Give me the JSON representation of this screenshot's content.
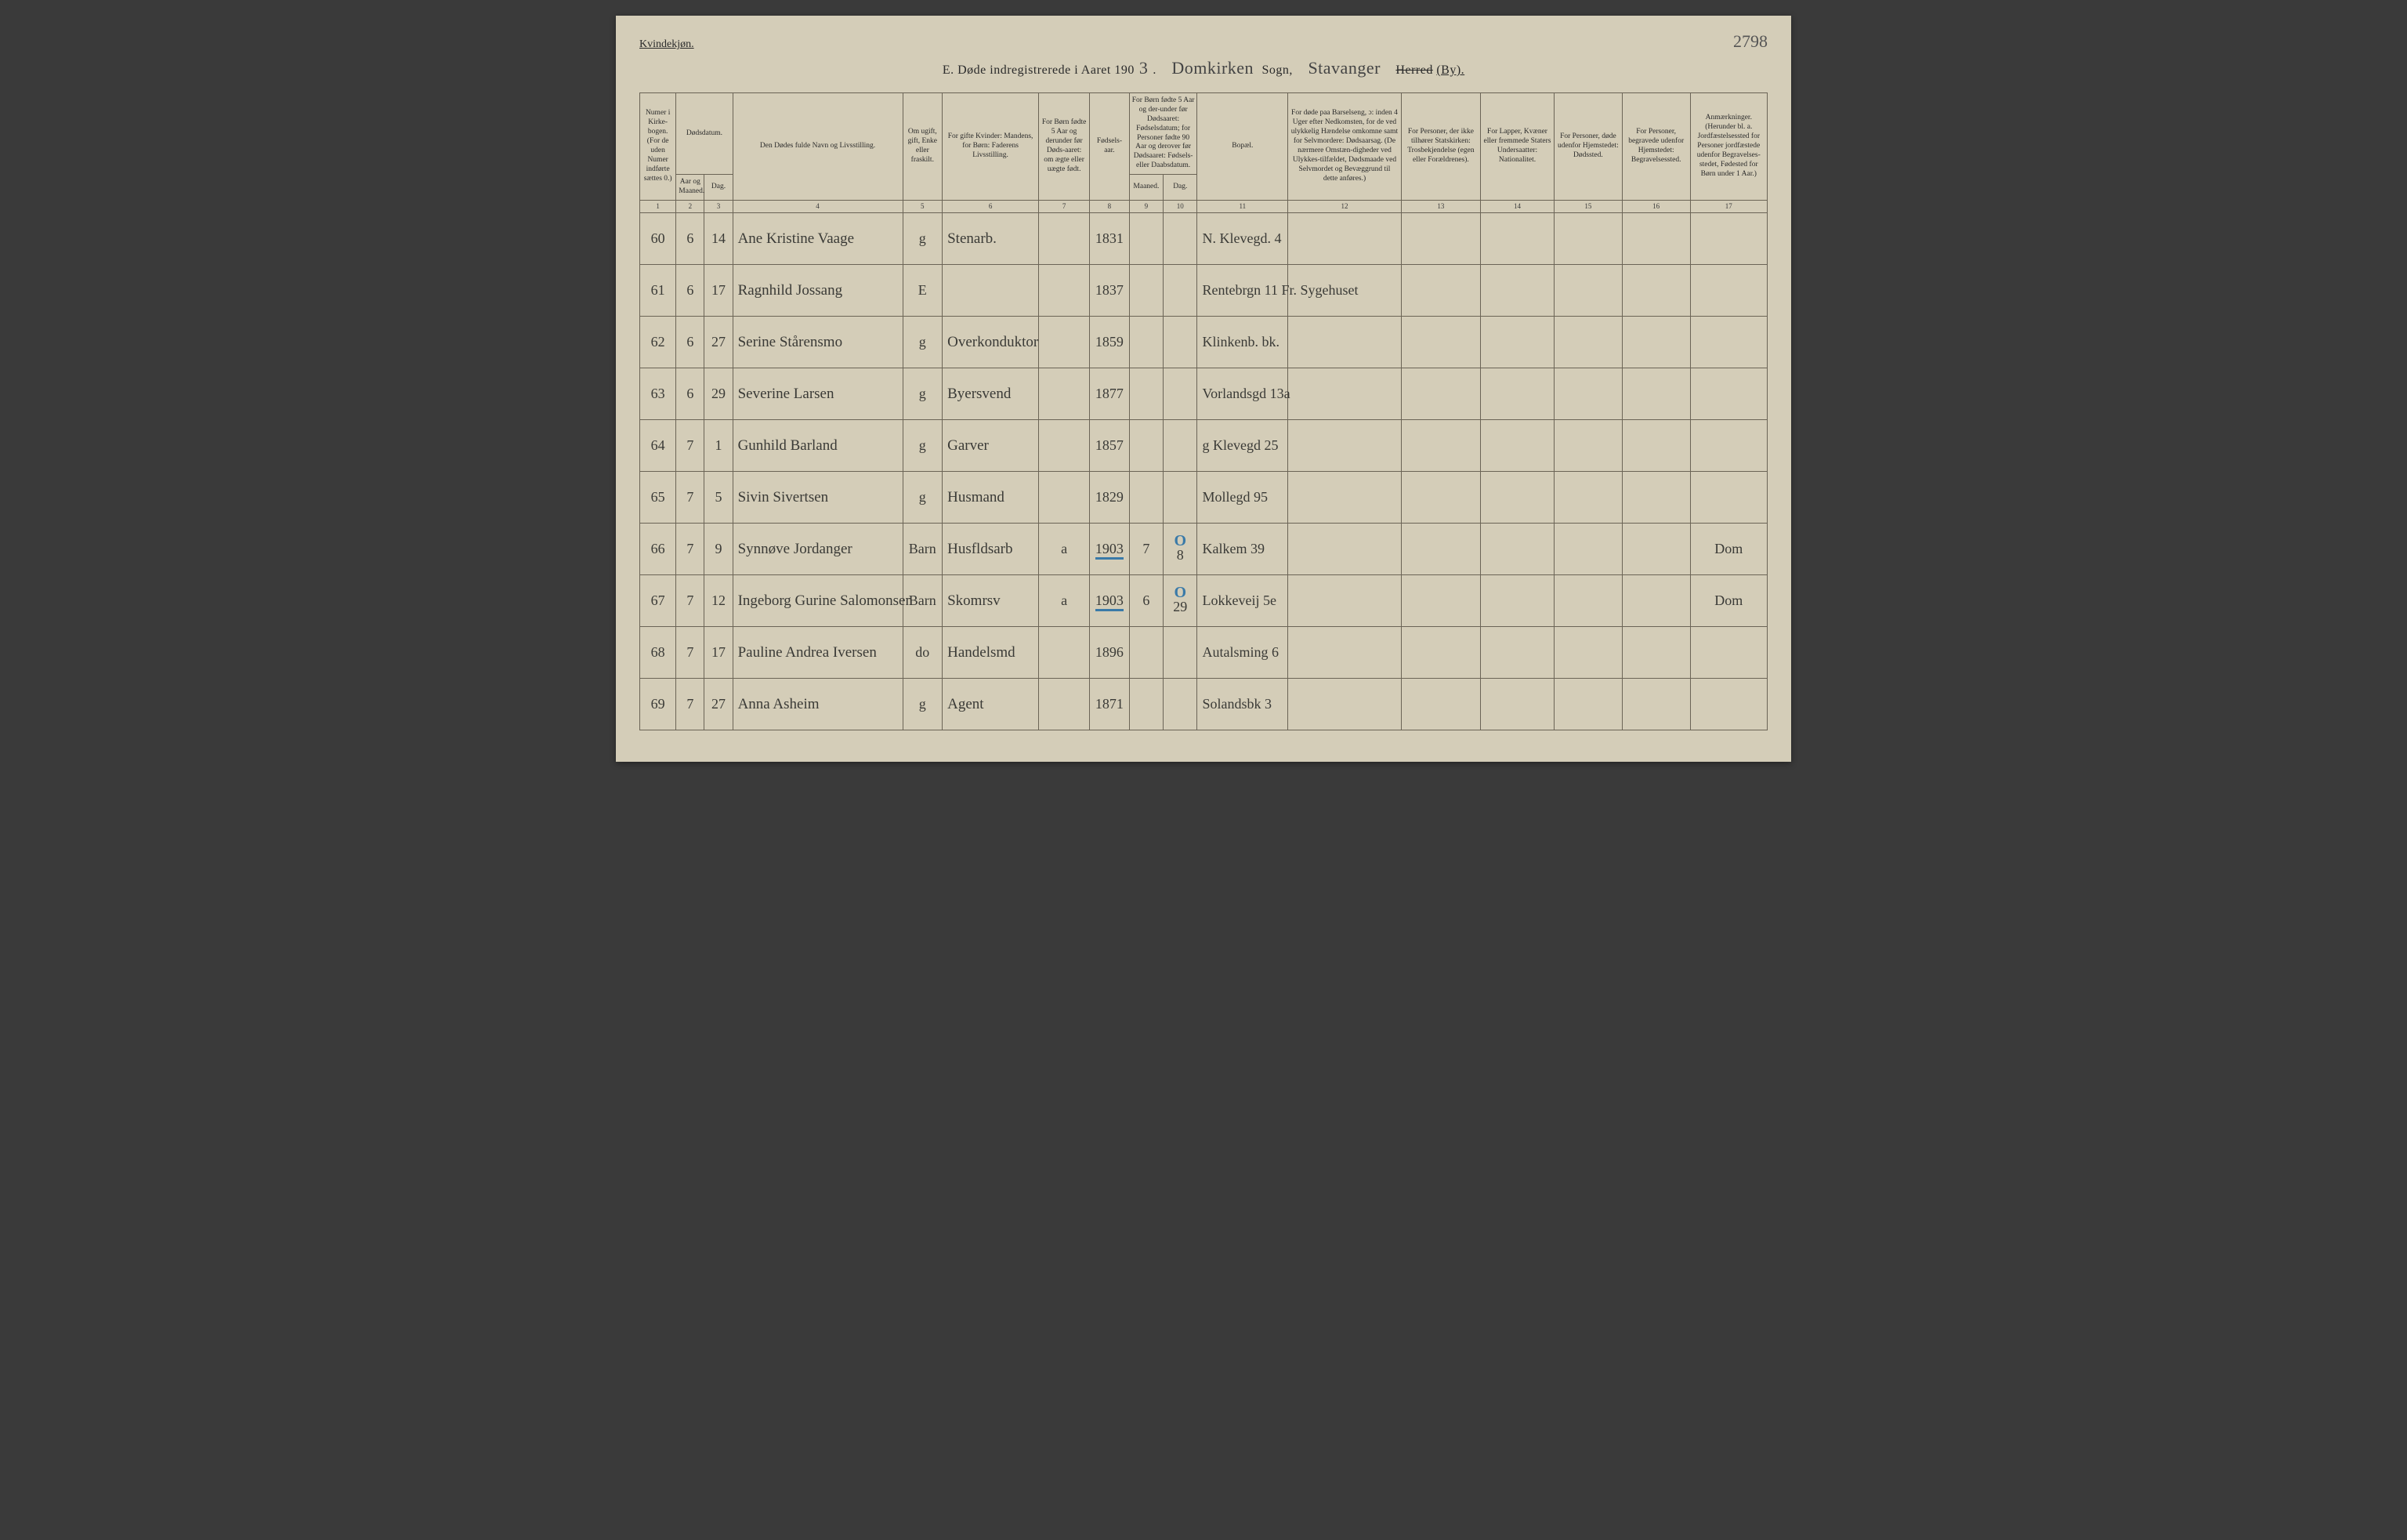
{
  "header": {
    "gender_label": "Kvindekjøn.",
    "page_number": "2798",
    "title_prefix": "E.  Døde indregistrerede i Aaret 190",
    "year_digit": "3",
    "sogn_handwritten": "Domkirken",
    "sogn_label": "Sogn,",
    "herred_handwritten": "Stavanger",
    "herred_strike": "Herred",
    "by_label": "(By)."
  },
  "columns": {
    "c1": "Numer i Kirke-bogen. (For de uden Numer indførte sættes 0.)",
    "c2a": "Dødsdatum.",
    "c2": "Aar og Maaned.",
    "c3": "Dag.",
    "c4": "Den Dødes fulde Navn og Livsstilling.",
    "c5": "Om ugift, gift, Enke eller fraskilt.",
    "c6": "For gifte Kvinder: Mandens, for Børn: Faderens Livsstilling.",
    "c7": "For Børn fødte 5 Aar og derunder før Døds-aaret: om ægte eller uægte født.",
    "c8": "Fødsels-aar.",
    "c9_10a": "For Børn fødte 5 Aar og der-under før Dødsaaret: Fødselsdatum; for Personer fødte 90 Aar og derover før Dødsaaret: Fødsels- eller Daabsdatum.",
    "c9": "Maaned.",
    "c10": "Dag.",
    "c11": "Bopæl.",
    "c12": "For døde paa Barselseng, ɔ: inden 4 Uger efter Nedkomsten, for de ved ulykkelig Hændelse omkomne samt for Selvmordere: Dødsaarsag. (De nærmere Omstæn-digheder ved Ulykkes-tilfældet, Dødsmaade ved Selvmordet og Bevæggrund til dette anføres.)",
    "c13": "For Personer, der ikke tilhører Statskirken: Trosbekjendelse (egen eller Forældrenes).",
    "c14": "For Lapper, Kvæner eller fremmede Staters Undersaatter: Nationalitet.",
    "c15": "For Personer, døde udenfor Hjemstedet: Dødssted.",
    "c16": "For Personer, begravede udenfor Hjemstedet: Begravelsessted.",
    "c17": "Anmærkninger. (Herunder bl. a. Jordfæstelsessted for Personer jordfæstede udenfor Begravelses-stedet, Fødested for Børn under 1 Aar.)"
  },
  "colnums": [
    "1",
    "2",
    "3",
    "4",
    "5",
    "6",
    "7",
    "8",
    "9",
    "10",
    "11",
    "12",
    "13",
    "14",
    "15",
    "16",
    "17"
  ],
  "rows": [
    {
      "num": "60",
      "mnd": "6",
      "dag": "14",
      "navn": "Ane Kristine Vaage",
      "stand": "g",
      "fader": "Stenarb.",
      "egte": "",
      "faar": "1831",
      "fmnd": "",
      "fdag": "",
      "bopael": "N. Klevegd. 4",
      "c12": "",
      "c13": "",
      "c14": "",
      "c15": "",
      "c16": "",
      "c17": ""
    },
    {
      "num": "61",
      "mnd": "6",
      "dag": "17",
      "navn": "Ragnhild Jossang",
      "stand": "E",
      "fader": "",
      "egte": "",
      "faar": "1837",
      "fmnd": "",
      "fdag": "",
      "bopael": "Rentebrgn 11   Fr. Sygehuset",
      "c12": "",
      "c13": "",
      "c14": "",
      "c15": "",
      "c16": "",
      "c17": ""
    },
    {
      "num": "62",
      "mnd": "6",
      "dag": "27",
      "navn": "Serine Stårensmo",
      "stand": "g",
      "fader": "Overkonduktor",
      "egte": "",
      "faar": "1859",
      "fmnd": "",
      "fdag": "",
      "bopael": "Klinkenb. bk.",
      "c12": "",
      "c13": "",
      "c14": "",
      "c15": "",
      "c16": "",
      "c17": ""
    },
    {
      "num": "63",
      "mnd": "6",
      "dag": "29",
      "navn": "Severine Larsen",
      "stand": "g",
      "fader": "Byersvend",
      "egte": "",
      "faar": "1877",
      "fmnd": "",
      "fdag": "",
      "bopael": "Vorlandsgd 13a",
      "c12": "",
      "c13": "",
      "c14": "",
      "c15": "",
      "c16": "",
      "c17": ""
    },
    {
      "num": "64",
      "mnd": "7",
      "dag": "1",
      "navn": "Gunhild Barland",
      "stand": "g",
      "fader": "Garver",
      "egte": "",
      "faar": "1857",
      "fmnd": "",
      "fdag": "",
      "bopael": "g Klevegd 25",
      "c12": "",
      "c13": "",
      "c14": "",
      "c15": "",
      "c16": "",
      "c17": ""
    },
    {
      "num": "65",
      "mnd": "7",
      "dag": "5",
      "navn": "Sivin Sivertsen",
      "stand": "g",
      "fader": "Husmand",
      "egte": "",
      "faar": "1829",
      "fmnd": "",
      "fdag": "",
      "bopael": "Mollegd 95",
      "c12": "",
      "c13": "",
      "c14": "",
      "c15": "",
      "c16": "",
      "c17": ""
    },
    {
      "num": "66",
      "mnd": "7",
      "dag": "9",
      "navn": "Synnøve Jordanger",
      "stand": "Barn",
      "fader": "Husfldsarb",
      "egte": "a",
      "faar": "1903",
      "fmnd": "7",
      "fdag": "8",
      "bopael": "Kalkem 39",
      "c12": "",
      "c13": "",
      "c14": "",
      "c15": "",
      "c16": "",
      "c17": "Dom",
      "blue": true
    },
    {
      "num": "67",
      "mnd": "7",
      "dag": "12",
      "navn": "Ingeborg Gurine Salomonsen",
      "stand": "Barn",
      "fader": "Skomrsv",
      "egte": "a",
      "faar": "1903",
      "fmnd": "6",
      "fdag": "29",
      "bopael": "Lokkeveij 5e",
      "c12": "",
      "c13": "",
      "c14": "",
      "c15": "",
      "c16": "",
      "c17": "Dom",
      "blue": true
    },
    {
      "num": "68",
      "mnd": "7",
      "dag": "17",
      "navn": "Pauline Andrea Iversen",
      "stand": "do",
      "fader": "Handelsmd",
      "egte": "",
      "faar": "1896",
      "fmnd": "",
      "fdag": "",
      "bopael": "Autalsming 6",
      "c12": "",
      "c13": "",
      "c14": "",
      "c15": "",
      "c16": "",
      "c17": ""
    },
    {
      "num": "69",
      "mnd": "7",
      "dag": "27",
      "navn": "Anna Asheim",
      "stand": "g",
      "fader": "Agent",
      "egte": "",
      "faar": "1871",
      "fmnd": "",
      "fdag": "",
      "bopael": "Solandsbk 3",
      "c12": "",
      "c13": "",
      "c14": "",
      "c15": "",
      "c16": "",
      "c17": ""
    }
  ]
}
